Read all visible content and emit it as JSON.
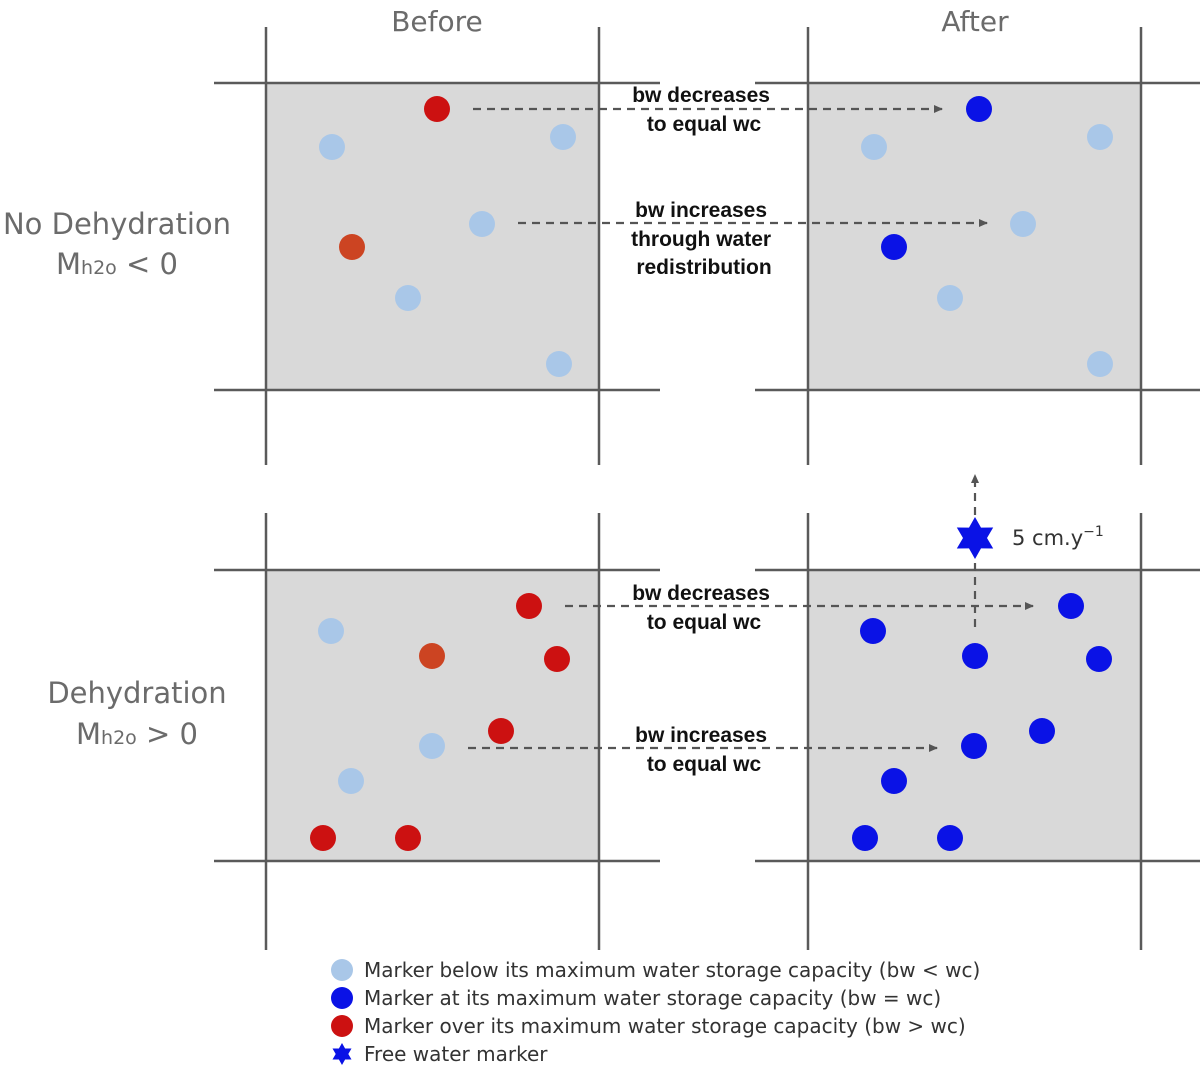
{
  "columns": {
    "before": "Before",
    "after": "After"
  },
  "rows": {
    "no_dehydration": {
      "title": "No Dehydration",
      "symbol": "M",
      "subscript": "h2o",
      "relation": " < 0"
    },
    "dehydration": {
      "title": "Dehydration",
      "symbol": "M",
      "subscript": "h2o",
      "relation": " > 0"
    }
  },
  "annotations": {
    "top_decrease": [
      "bw decreases",
      "to equal wc"
    ],
    "top_increase": [
      "bw increases",
      "through water",
      "redistribution"
    ],
    "bottom_decrease": [
      "bw decreases",
      "to equal wc"
    ],
    "bottom_increase": [
      "bw increases",
      "to equal wc"
    ],
    "rate": {
      "value": "5 cm.y",
      "exponent": "−1"
    }
  },
  "legend": [
    {
      "marker": "below",
      "label": "Marker below its maximum water storage capacity (bw < wc)"
    },
    {
      "marker": "at",
      "label": "Marker at its maximum water storage capacity (bw = wc)"
    },
    {
      "marker": "over",
      "label": "Marker over its maximum water storage capacity (bw > wc)"
    },
    {
      "marker": "free",
      "label": "Free water marker"
    }
  ],
  "colors": {
    "below": "#a9c7e8",
    "at": "#0a12e6",
    "over": "#cc1111",
    "over_alt": "#cc4422",
    "cell": "#d9d9d9"
  },
  "icons": {
    "free_water": "six-point-star-icon",
    "marker": "filled-circle-icon"
  }
}
